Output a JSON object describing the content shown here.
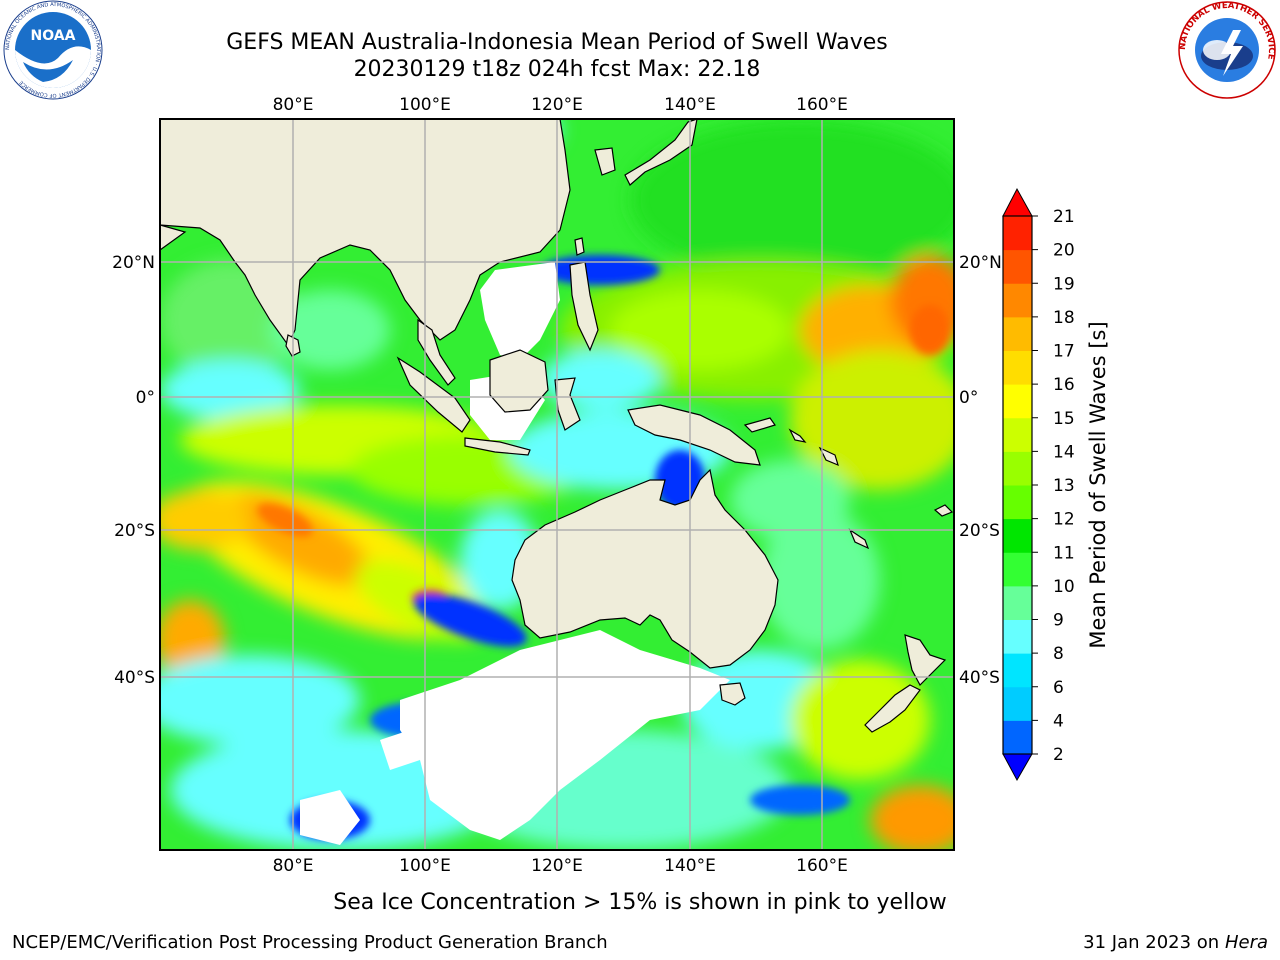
{
  "header": {
    "title_line1": "GEFS MEAN Australia-Indonesia Mean Period of Swell Waves",
    "title_line2": "20230129 t18z 024h fcst   Max: 22.18"
  },
  "logos": {
    "left": {
      "name": "noaa-logo",
      "text": "NOAA",
      "ring_text": "NATIONAL OCEANIC AND ATMOSPHERIC ADMINISTRATION · U.S. DEPARTMENT OF COMMERCE"
    },
    "right": {
      "name": "nws-logo",
      "ring_text": "NATIONAL WEATHER SERVICE"
    }
  },
  "map": {
    "lon_labels": [
      "80°E",
      "100°E",
      "120°E",
      "140°E",
      "160°E"
    ],
    "lat_labels": [
      "20°N",
      "0°",
      "20°S",
      "40°S"
    ],
    "land_color": "#efedda",
    "ice_color": "#ffffff",
    "grid_color": "#b0b0b0"
  },
  "colorbar": {
    "label": "Mean Period of Swell Waves [s]",
    "ticks": [
      "2",
      "4",
      "6",
      "8",
      "9",
      "10",
      "11",
      "12",
      "13",
      "14",
      "15",
      "16",
      "17",
      "18",
      "19",
      "20",
      "21"
    ],
    "colors": [
      "#0066ff",
      "#00ccff",
      "#00e5ff",
      "#66ffff",
      "#66ff99",
      "#33ff33",
      "#00e600",
      "#66ff00",
      "#99ff00",
      "#ccff00",
      "#ffff00",
      "#ffdd00",
      "#ffbb00",
      "#ff8800",
      "#ff5500",
      "#ff2200"
    ],
    "under_color": "#0000ff",
    "over_color": "#ff0000"
  },
  "footer": {
    "note": "Sea Ice Concentration > 15% is shown in pink to yellow",
    "credit": "NCEP/EMC/Verification Post Processing Product Generation Branch",
    "date": "31 Jan 2023 on",
    "machine": "Hera"
  }
}
